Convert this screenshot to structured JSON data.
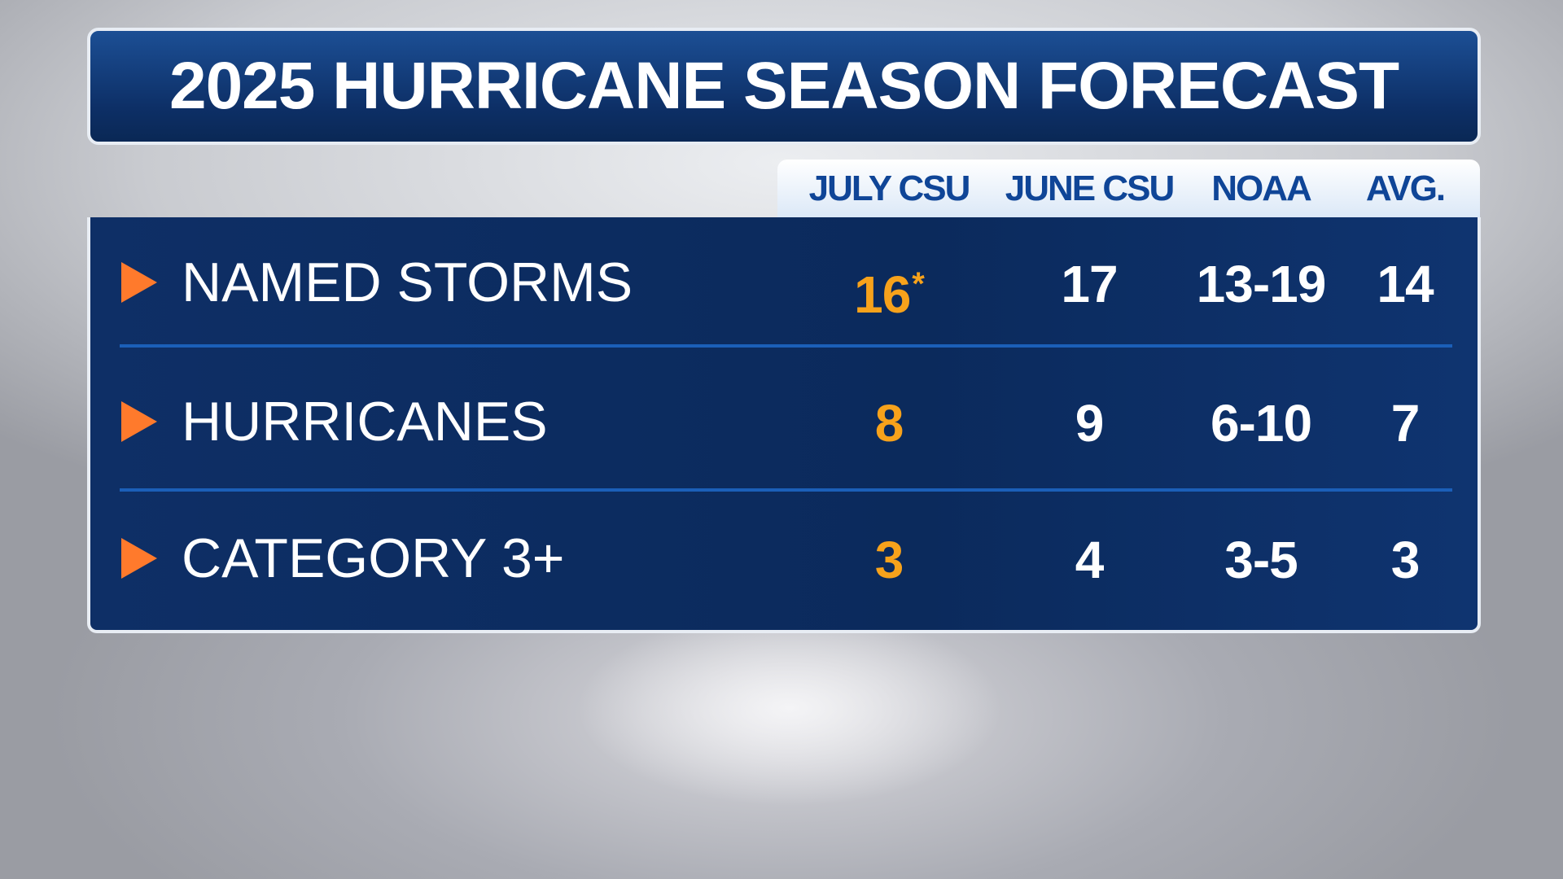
{
  "title": "2025 HURRICANE SEASON FORECAST",
  "table": {
    "columns": [
      "JULY CSU",
      "JUNE CSU",
      "NOAA",
      "AVG."
    ],
    "rows": [
      {
        "label": "NAMED STORMS",
        "cells": [
          16,
          17,
          "13-19",
          14
        ],
        "note": "*"
      },
      {
        "label": "HURRICANES",
        "cells": [
          8,
          9,
          "6-10",
          7
        ]
      },
      {
        "label": "CATEGORY 3+",
        "cells": [
          3,
          4,
          "3-5",
          3
        ]
      }
    ]
  }
}
